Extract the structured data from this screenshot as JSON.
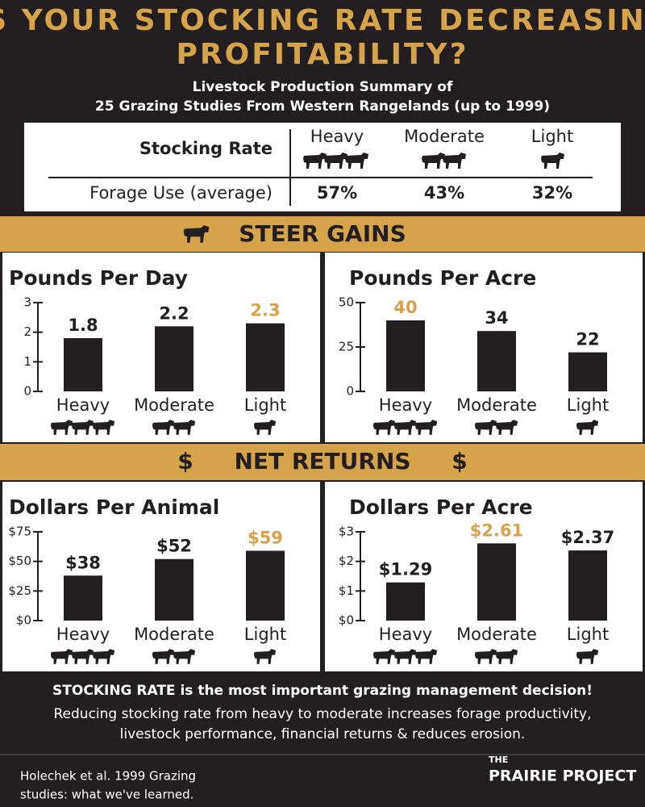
{
  "header": {
    "title_lines": [
      "IS YOUR STOCKING RATE DECREASING",
      "PROFITABILITY?"
    ],
    "subtitle_lines": [
      "Livestock Production Summary of",
      "25 Grazing Studies From Western Rangelands (up to 1999)"
    ]
  },
  "table": {
    "header": [
      "Stocking Rate",
      "Heavy",
      "Moderate",
      "Light"
    ],
    "rows": [
      [
        "Forage Use (average)",
        "57%",
        "43%",
        "32%"
      ]
    ]
  },
  "sections": [
    "STEER GAINS",
    "NET RETURNS"
  ],
  "chart_data": [
    {
      "type": "bar",
      "title": "Pounds Per Day",
      "categories": [
        "Heavy",
        "Moderate",
        "Light"
      ],
      "values": [
        1.8,
        2.2,
        2.3
      ],
      "color": "#231f20",
      "highlight": 2,
      "highlight_color": "#d6a24a",
      "ylim": [
        0,
        3
      ],
      "yticks": [
        0,
        1,
        2,
        3
      ]
    },
    {
      "type": "bar",
      "title": "Pounds Per Acre",
      "categories": [
        "Heavy",
        "Moderate",
        "Light"
      ],
      "values": [
        40,
        34,
        22
      ],
      "color": "#231f20",
      "highlight": 0,
      "highlight_color": "#d6a24a",
      "ylim": [
        0,
        50
      ],
      "yticks": [
        0,
        25,
        50
      ]
    },
    {
      "type": "bar",
      "title": "Dollars Per Animal",
      "categories": [
        "Heavy",
        "Moderate",
        "Light"
      ],
      "values": [
        38,
        52,
        59
      ],
      "value_labels": [
        "$38",
        "$52",
        "$59"
      ],
      "color": "#231f20",
      "highlight": 2,
      "highlight_color": "#d6a24a",
      "ylim": [
        0,
        75
      ],
      "yticks": [
        {
          "value": 0,
          "label": "$0"
        },
        {
          "value": 25,
          "label": "$25"
        },
        {
          "value": 50,
          "label": "$50"
        },
        {
          "value": 75,
          "label": "$75"
        }
      ]
    },
    {
      "type": "bar",
      "title": "Dollars Per Acre",
      "categories": [
        "Heavy",
        "Moderate",
        "Light"
      ],
      "values": [
        1.29,
        2.61,
        2.37
      ],
      "value_labels": [
        "$1.29",
        "$2.61",
        "$2.37"
      ],
      "color": "#231f20",
      "highlight": 1,
      "highlight_color": "#d6a24a",
      "ylim": [
        0,
        3
      ],
      "yticks": [
        {
          "value": 0,
          "label": "$0"
        },
        {
          "value": 1,
          "label": "$1"
        },
        {
          "value": 2,
          "label": "$2"
        },
        {
          "value": 3,
          "label": "$3"
        }
      ]
    }
  ],
  "footer": {
    "statement": "STOCKING RATE is the most important grazing management decision!",
    "detail_lines": [
      "Reducing stocking rate from heavy to moderate increases forage productivity,",
      "livestock performance, financial returns & reduces erosion."
    ],
    "citation_lines": [
      "Holechek et al. 1999 Grazing",
      "studies: what we've learned."
    ],
    "logo_lines": [
      "THE",
      "PRAIRIE PROJECT"
    ]
  }
}
